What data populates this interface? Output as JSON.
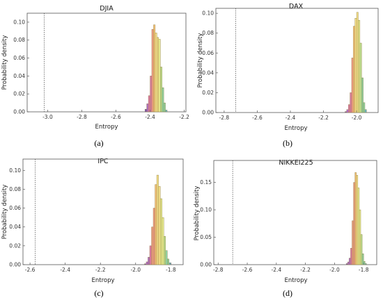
{
  "chart_data": [
    {
      "type": "bar",
      "panel_label": "(a)",
      "title": "DJIA",
      "xlabel": "Entropy",
      "ylabel": "Probability density",
      "xlim": [
        -3.12,
        -2.19
      ],
      "ylim": [
        0,
        0.11
      ],
      "x_ticks": [
        -3.0,
        -2.8,
        -2.6,
        -2.4,
        -2.2
      ],
      "x_tick_labels": [
        "-3.0",
        "-2.8",
        "-2.6",
        "-2.4",
        "-2.2"
      ],
      "y_ticks": [
        0,
        0.02,
        0.04,
        0.06,
        0.08,
        0.1
      ],
      "y_tick_labels": [
        "0.00",
        "0.02",
        "0.04",
        "0.06",
        "0.08",
        "0.10"
      ],
      "reference_line_x": -3.02,
      "bins_x": [
        -2.43,
        -2.42,
        -2.41,
        -2.4,
        -2.39,
        -2.38,
        -2.37,
        -2.36,
        -2.35,
        -2.34,
        -2.33,
        -2.32,
        -2.31
      ],
      "bin_width": 0.01,
      "values": [
        0.003,
        0.009,
        0.018,
        0.04,
        0.092,
        0.097,
        0.088,
        0.083,
        0.081,
        0.05,
        0.027,
        0.01,
        0.002
      ]
    },
    {
      "type": "bar",
      "panel_label": "(b)",
      "title": "DAX",
      "xlabel": "Entropy",
      "ylabel": "Probability density",
      "xlim": [
        -2.85,
        -1.87
      ],
      "ylim": [
        0,
        0.105
      ],
      "x_ticks": [
        -2.8,
        -2.6,
        -2.4,
        -2.2,
        -2.0
      ],
      "x_tick_labels": [
        "-2.8",
        "-2.6",
        "-2.4",
        "-2.2",
        "-2.0"
      ],
      "y_ticks": [
        0,
        0.02,
        0.04,
        0.06,
        0.08,
        0.1
      ],
      "y_tick_labels": [
        "0.00",
        "0.02",
        "0.04",
        "0.06",
        "0.08",
        "0.10"
      ],
      "reference_line_x": -2.73,
      "bins_x": [
        -2.07,
        -2.06,
        -2.05,
        -2.04,
        -2.03,
        -2.02,
        -2.01,
        -2.0,
        -1.99,
        -1.98,
        -1.97,
        -1.96,
        -1.95
      ],
      "bin_width": 0.01,
      "values": [
        0.001,
        0.003,
        0.008,
        0.02,
        0.055,
        0.087,
        0.095,
        0.101,
        0.093,
        0.07,
        0.035,
        0.01,
        0.003
      ]
    },
    {
      "type": "bar",
      "panel_label": "(c)",
      "title": "IPC",
      "xlabel": "Entropy",
      "ylabel": "Probability density",
      "xlim": [
        -2.64,
        -1.73
      ],
      "ylim": [
        0,
        0.112
      ],
      "x_ticks": [
        -2.6,
        -2.4,
        -2.2,
        -2.0,
        -1.8
      ],
      "x_tick_labels": [
        "-2.6",
        "-2.4",
        "-2.2",
        "-2.0",
        "-1.8"
      ],
      "y_ticks": [
        0,
        0.02,
        0.04,
        0.06,
        0.08,
        0.1
      ],
      "y_tick_labels": [
        "0.00",
        "0.02",
        "0.04",
        "0.06",
        "0.08",
        "0.10"
      ],
      "reference_line_x": -2.57,
      "bins_x": [
        -1.95,
        -1.94,
        -1.93,
        -1.92,
        -1.91,
        -1.9,
        -1.89,
        -1.88,
        -1.87,
        -1.86,
        -1.85,
        -1.84,
        -1.83,
        -1.82,
        -1.81
      ],
      "bin_width": 0.01,
      "values": [
        0.001,
        0.003,
        0.008,
        0.02,
        0.04,
        0.06,
        0.085,
        0.095,
        0.083,
        0.07,
        0.05,
        0.03,
        0.015,
        0.006,
        0.002
      ]
    },
    {
      "type": "bar",
      "panel_label": "(d)",
      "title": "NIKKEI225",
      "xlabel": "Entropy",
      "ylabel": "Probability density",
      "xlim": [
        -2.83,
        -1.71
      ],
      "ylim": [
        0,
        0.19
      ],
      "x_ticks": [
        -2.8,
        -2.6,
        -2.4,
        -2.2,
        -2.0,
        -1.8
      ],
      "x_tick_labels": [
        "-2.8",
        "-2.6",
        "-2.4",
        "-2.2",
        "-2.0",
        "-1.8"
      ],
      "y_ticks": [
        0,
        0.05,
        0.1,
        0.15
      ],
      "y_tick_labels": [
        "0.00",
        "0.05",
        "0.10",
        "0.15"
      ],
      "reference_line_x": -2.7,
      "bins_x": [
        -1.92,
        -1.91,
        -1.9,
        -1.89,
        -1.88,
        -1.87,
        -1.86,
        -1.85,
        -1.84,
        -1.83,
        -1.82,
        -1.81,
        -1.8,
        -1.79
      ],
      "bin_width": 0.01,
      "values": [
        0.002,
        0.005,
        0.012,
        0.03,
        0.08,
        0.15,
        0.168,
        0.163,
        0.14,
        0.1,
        0.055,
        0.02,
        0.006,
        0.002
      ]
    }
  ],
  "colors": {
    "bar_palette": [
      "#7a4fb8",
      "#b06cc7",
      "#e07aa8",
      "#f09c84",
      "#f5c27a",
      "#f4df8a",
      "#e6ea8e",
      "#bedf90",
      "#8fd1a0",
      "#6bb6c4"
    ],
    "bar_stroke": "#8a7a3a",
    "frame": "#555555",
    "reference_line": "#444444"
  }
}
